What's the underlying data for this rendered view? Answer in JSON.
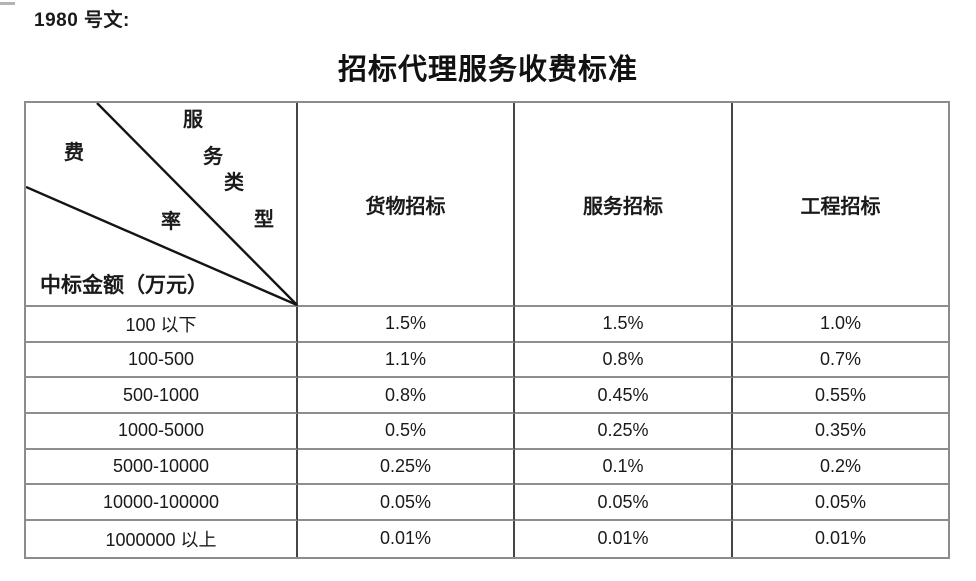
{
  "page": {
    "doc_label": "1980 号文:",
    "title": "招标代理服务收费标准"
  },
  "table": {
    "corner": {
      "fee_chars": [
        "费",
        "率"
      ],
      "service_type_chars": [
        "服",
        "务",
        "类",
        "型"
      ],
      "row_axis_label": "中标金额（万元）"
    },
    "columns": [
      "货物招标",
      "服务招标",
      "工程招标"
    ],
    "rows": [
      {
        "range": "100 以下",
        "values": [
          "1.5%",
          "1.5%",
          "1.0%"
        ]
      },
      {
        "range": "100-500",
        "values": [
          "1.1%",
          "0.8%",
          "0.7%"
        ]
      },
      {
        "range": "500-1000",
        "values": [
          "0.8%",
          "0.45%",
          "0.55%"
        ]
      },
      {
        "range": "1000-5000",
        "values": [
          "0.5%",
          "0.25%",
          "0.35%"
        ]
      },
      {
        "range": "5000-10000",
        "values": [
          "0.25%",
          "0.1%",
          "0.2%"
        ]
      },
      {
        "range": "10000-100000",
        "values": [
          "0.05%",
          "0.05%",
          "0.05%"
        ]
      },
      {
        "range": "1000000 以上",
        "values": [
          "0.01%",
          "0.01%",
          "0.01%"
        ]
      }
    ],
    "colors": {
      "outer_border": "#8c8c8c",
      "horizontal_grid": "#8e8e8e",
      "vertical_grid": "#454545",
      "diagonal_line": "#141414",
      "text": "#1a1a1a"
    }
  }
}
